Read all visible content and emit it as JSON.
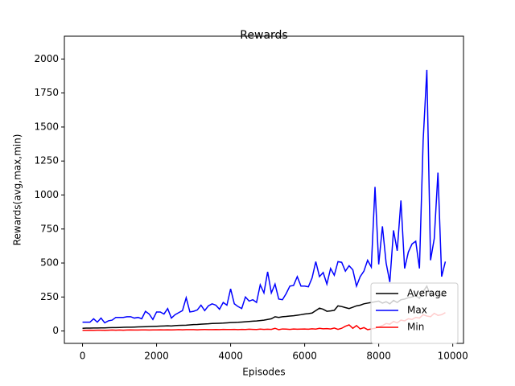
{
  "chart_data": {
    "type": "line",
    "title": "Rewards",
    "x_label": "Episodes",
    "y_label": "Rewards(avg,max,min)",
    "x": [
      0,
      100,
      200,
      300,
      400,
      500,
      600,
      700,
      800,
      900,
      1000,
      1100,
      1200,
      1300,
      1400,
      1500,
      1600,
      1700,
      1800,
      1900,
      2000,
      2100,
      2200,
      2300,
      2400,
      2500,
      2600,
      2700,
      2800,
      2900,
      3000,
      3100,
      3200,
      3300,
      3400,
      3500,
      3600,
      3700,
      3800,
      3900,
      4000,
      4100,
      4200,
      4300,
      4400,
      4500,
      4600,
      4700,
      4800,
      4900,
      5000,
      5100,
      5200,
      5300,
      5400,
      5500,
      5600,
      5700,
      5800,
      5900,
      6000,
      6100,
      6200,
      6300,
      6400,
      6500,
      6600,
      6700,
      6800,
      6900,
      7000,
      7100,
      7200,
      7300,
      7400,
      7500,
      7600,
      7700,
      7800,
      7900,
      8000,
      8100,
      8200,
      8300,
      8400,
      8500,
      8600,
      8700,
      8800,
      8900,
      9000,
      9100,
      9200,
      9300,
      9400,
      9500,
      9600,
      9700,
      9800
    ],
    "series": [
      {
        "name": "Average",
        "color": "#000000",
        "values": [
          20,
          21,
          21,
          22,
          22,
          23,
          23,
          24,
          25,
          25,
          26,
          27,
          28,
          28,
          29,
          30,
          31,
          32,
          33,
          34,
          35,
          36,
          37,
          38,
          37,
          40,
          41,
          42,
          43,
          45,
          47,
          48,
          50,
          52,
          53,
          55,
          56,
          57,
          58,
          60,
          62,
          63,
          64,
          66,
          68,
          70,
          72,
          74,
          77,
          80,
          85,
          90,
          105,
          100,
          105,
          107,
          110,
          112,
          116,
          120,
          125,
          128,
          132,
          150,
          168,
          160,
          145,
          148,
          152,
          185,
          180,
          172,
          165,
          175,
          185,
          190,
          200,
          205,
          210,
          215,
          220,
          205,
          215,
          200,
          225,
          210,
          230,
          235,
          245,
          250,
          260,
          240,
          290,
          330,
          260,
          270,
          280,
          260,
          265
        ]
      },
      {
        "name": "Max",
        "color": "#0000ff",
        "values": [
          65,
          65,
          65,
          90,
          65,
          95,
          60,
          75,
          80,
          100,
          100,
          100,
          105,
          105,
          95,
          100,
          90,
          145,
          125,
          85,
          140,
          140,
          125,
          165,
          95,
          120,
          135,
          150,
          245,
          140,
          145,
          155,
          190,
          150,
          185,
          200,
          190,
          160,
          210,
          190,
          310,
          200,
          180,
          165,
          250,
          220,
          230,
          210,
          340,
          280,
          435,
          280,
          345,
          235,
          230,
          275,
          330,
          335,
          400,
          330,
          330,
          325,
          390,
          510,
          400,
          430,
          345,
          460,
          410,
          510,
          505,
          440,
          480,
          450,
          330,
          400,
          440,
          520,
          470,
          1060,
          490,
          770,
          500,
          360,
          740,
          590,
          960,
          460,
          580,
          640,
          660,
          460,
          1400,
          1920,
          520,
          680,
          1165,
          400,
          510
        ]
      },
      {
        "name": "Min",
        "color": "#ff0000",
        "values": [
          5,
          5,
          6,
          5,
          6,
          6,
          5,
          6,
          7,
          6,
          7,
          6,
          7,
          8,
          7,
          7,
          8,
          8,
          7,
          8,
          8,
          9,
          8,
          9,
          8,
          9,
          10,
          9,
          10,
          10,
          10,
          9,
          10,
          11,
          10,
          10,
          11,
          10,
          12,
          11,
          11,
          12,
          10,
          12,
          11,
          13,
          12,
          11,
          14,
          12,
          13,
          12,
          20,
          10,
          15,
          14,
          12,
          15,
          13,
          14,
          15,
          13,
          16,
          14,
          20,
          16,
          18,
          15,
          22,
          12,
          20,
          35,
          45,
          20,
          40,
          15,
          25,
          10,
          15,
          20,
          30,
          40,
          55,
          50,
          70,
          60,
          80,
          75,
          90,
          85,
          100,
          95,
          120,
          110,
          105,
          130,
          115,
          120,
          135
        ]
      }
    ],
    "xlim": [
      -490,
      10290
    ],
    "ylim": [
      -91,
      2091
    ],
    "xticks": [
      0,
      2000,
      4000,
      6000,
      8000,
      10000
    ],
    "yticks": [
      0,
      250,
      500,
      750,
      1000,
      1250,
      1500,
      1750,
      2000
    ],
    "legend": "lower right"
  }
}
